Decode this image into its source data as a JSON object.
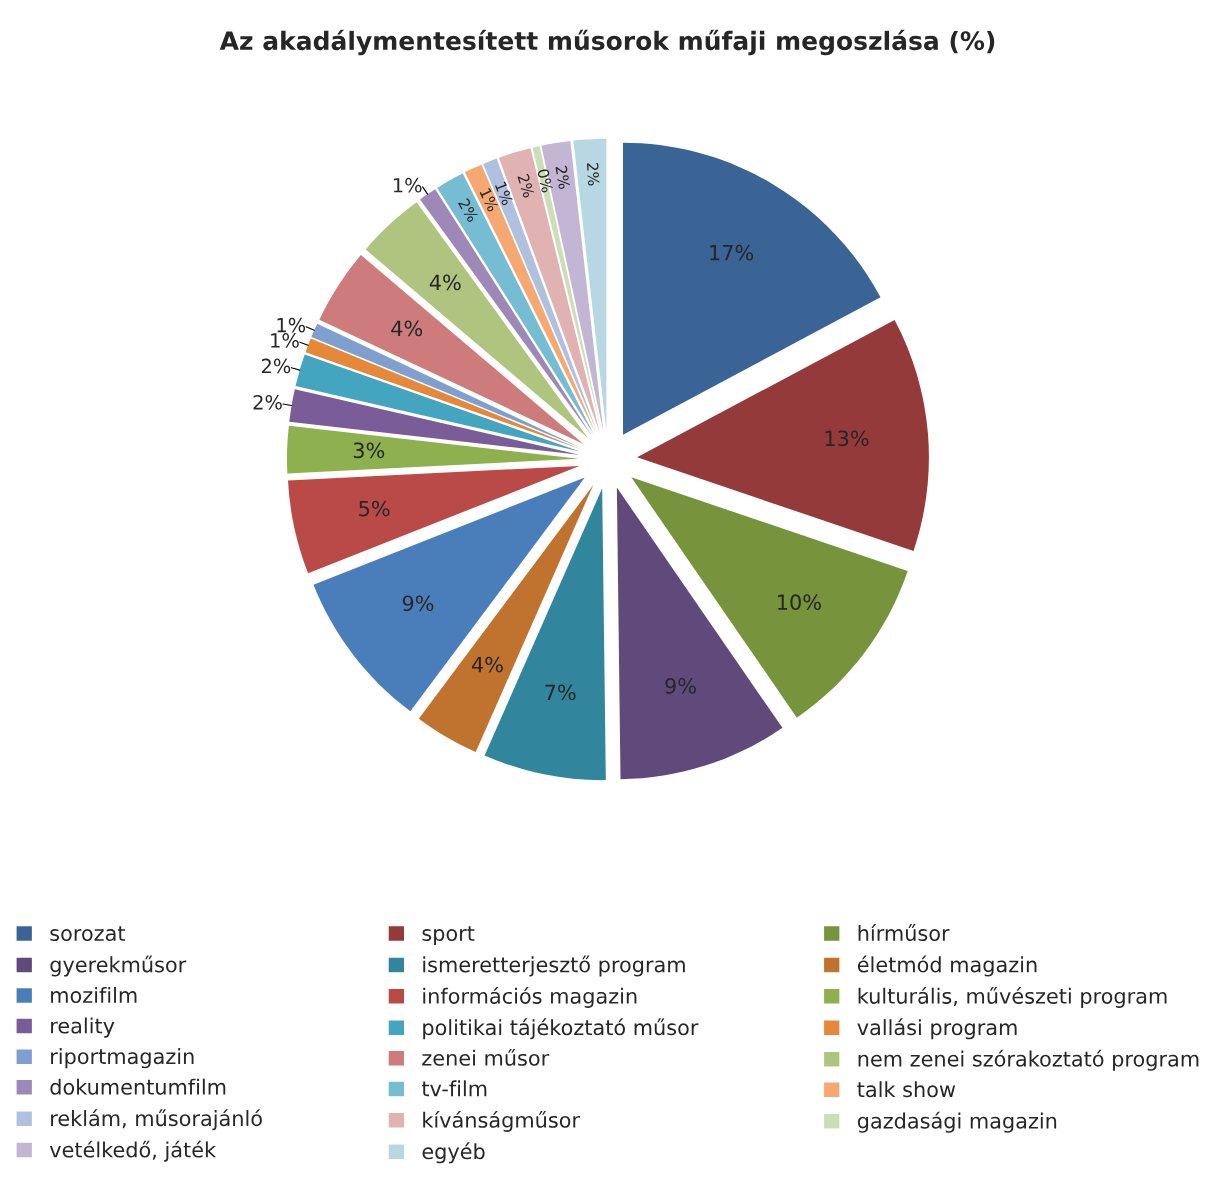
{
  "chart_data": {
    "type": "pie",
    "title": "Az akadálymentesített műsorok műfaji megoszlása (%)",
    "categories": [
      "sorozat",
      "sport",
      "hírműsor",
      "gyerekműsor",
      "ismeretterjesztő program",
      "életmód magazin",
      "mozifilm",
      "információs magazin",
      "kulturális, művészeti program",
      "reality",
      "politikai tájékoztató műsor",
      "vallási program",
      "riportmagazin",
      "zenei műsor",
      "nem zenei szórakoztató program",
      "dokumentumfilm",
      "tv-film",
      "talk show",
      "reklám, műsorajánló",
      "kívánságműsor",
      "gazdasági magazin",
      "vetélkedő, játék",
      "egyéb"
    ],
    "values": [
      17.2,
      13.0,
      10.2,
      9.4,
      6.8,
      3.6,
      8.8,
      5.2,
      2.6,
      1.8,
      1.8,
      0.8,
      0.8,
      4.2,
      3.8,
      1.0,
      1.6,
      1.0,
      0.8,
      1.8,
      0.4,
      1.6,
      1.8
    ],
    "value_labels": [
      "17%",
      "13%",
      "10%",
      "9%",
      "7%",
      "4%",
      "9%",
      "5%",
      "3%",
      "2%",
      "2%",
      "1%",
      "1%",
      "4%",
      "4%",
      "1%",
      "2%",
      "1%",
      "1%",
      "2%",
      "0%",
      "2%",
      "2%"
    ],
    "colors": [
      "#3b6496",
      "#953a3a",
      "#77933c",
      "#604a7b",
      "#31859c",
      "#c0722f",
      "#4a7ebb",
      "#b94a48",
      "#8eb04e",
      "#7a5c99",
      "#43a5c0",
      "#e5883a",
      "#7f9fcf",
      "#cd7b7b",
      "#aec47f",
      "#9d88b8",
      "#76bcd2",
      "#f5a872",
      "#b0c1df",
      "#e0b2b2",
      "#cfddb4",
      "#c3b6d4",
      "#b7d7e2"
    ],
    "legend": "bottom"
  }
}
